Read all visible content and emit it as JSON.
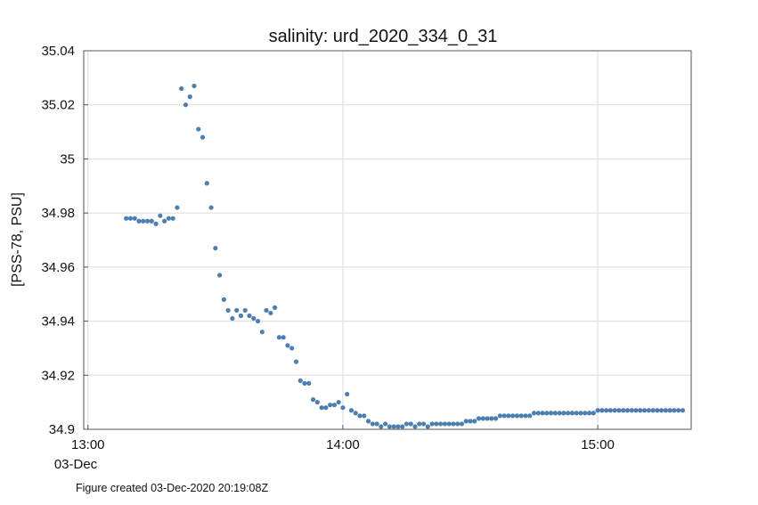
{
  "chart_data": {
    "type": "scatter",
    "title": "salinity: urd_2020_334_0_31",
    "xlabel": "",
    "ylabel": "[PSS-78, PSU]",
    "x_unit": "time of day on 03-Dec-2020 (hh:mm)",
    "xlim": [
      "12:59",
      "15:22"
    ],
    "ylim": [
      34.9,
      35.04
    ],
    "x_ticks": [
      "13:00",
      "14:00",
      "15:00"
    ],
    "x_tick_sublabel": "03-Dec",
    "y_ticks": [
      "35.04",
      "35.02",
      "35",
      "34.98",
      "34.96",
      "34.94",
      "34.92",
      "34.9"
    ],
    "grid": true,
    "marker_color": "#4a7fb0",
    "series": [
      {
        "points": [
          [
            "13:09",
            34.978
          ],
          [
            "13:10",
            34.978
          ],
          [
            "13:11",
            34.978
          ],
          [
            "13:12",
            34.977
          ],
          [
            "13:13",
            34.977
          ],
          [
            "13:14",
            34.977
          ],
          [
            "13:15",
            34.977
          ],
          [
            "13:16",
            34.976
          ],
          [
            "13:17",
            34.979
          ],
          [
            "13:18",
            34.977
          ],
          [
            "13:19",
            34.978
          ],
          [
            "13:20",
            34.978
          ],
          [
            "13:21",
            34.982
          ],
          [
            "13:22",
            35.026
          ],
          [
            "13:23",
            35.02
          ],
          [
            "13:24",
            35.023
          ],
          [
            "13:25",
            35.027
          ],
          [
            "13:26",
            35.011
          ],
          [
            "13:27",
            35.008
          ],
          [
            "13:28",
            34.991
          ],
          [
            "13:29",
            34.982
          ],
          [
            "13:30",
            34.967
          ],
          [
            "13:31",
            34.957
          ],
          [
            "13:32",
            34.948
          ],
          [
            "13:33",
            34.944
          ],
          [
            "13:34",
            34.941
          ],
          [
            "13:35",
            34.944
          ],
          [
            "13:36",
            34.942
          ],
          [
            "13:37",
            34.944
          ],
          [
            "13:38",
            34.942
          ],
          [
            "13:39",
            34.941
          ],
          [
            "13:40",
            34.94
          ],
          [
            "13:41",
            34.936
          ],
          [
            "13:42",
            34.944
          ],
          [
            "13:43",
            34.943
          ],
          [
            "13:44",
            34.945
          ],
          [
            "13:45",
            34.934
          ],
          [
            "13:46",
            34.934
          ],
          [
            "13:47",
            34.931
          ],
          [
            "13:48",
            34.93
          ],
          [
            "13:49",
            34.925
          ],
          [
            "13:50",
            34.918
          ],
          [
            "13:51",
            34.917
          ],
          [
            "13:52",
            34.917
          ],
          [
            "13:53",
            34.911
          ],
          [
            "13:54",
            34.91
          ],
          [
            "13:55",
            34.908
          ],
          [
            "13:56",
            34.908
          ],
          [
            "13:57",
            34.909
          ],
          [
            "13:58",
            34.909
          ],
          [
            "13:59",
            34.91
          ],
          [
            "14:00",
            34.908
          ],
          [
            "14:01",
            34.913
          ],
          [
            "14:02",
            34.907
          ],
          [
            "14:03",
            34.906
          ],
          [
            "14:04",
            34.905
          ],
          [
            "14:05",
            34.905
          ],
          [
            "14:06",
            34.903
          ],
          [
            "14:07",
            34.902
          ],
          [
            "14:08",
            34.902
          ],
          [
            "14:09",
            34.901
          ],
          [
            "14:10",
            34.902
          ],
          [
            "14:11",
            34.901
          ],
          [
            "14:12",
            34.901
          ],
          [
            "14:13",
            34.901
          ],
          [
            "14:14",
            34.901
          ],
          [
            "14:15",
            34.902
          ],
          [
            "14:16",
            34.902
          ],
          [
            "14:17",
            34.901
          ],
          [
            "14:18",
            34.902
          ],
          [
            "14:19",
            34.902
          ],
          [
            "14:20",
            34.901
          ],
          [
            "14:21",
            34.902
          ],
          [
            "14:22",
            34.902
          ],
          [
            "14:23",
            34.902
          ],
          [
            "14:24",
            34.902
          ],
          [
            "14:25",
            34.902
          ],
          [
            "14:26",
            34.902
          ],
          [
            "14:27",
            34.902
          ],
          [
            "14:28",
            34.902
          ],
          [
            "14:29",
            34.903
          ],
          [
            "14:30",
            34.903
          ],
          [
            "14:31",
            34.903
          ],
          [
            "14:32",
            34.904
          ],
          [
            "14:33",
            34.904
          ],
          [
            "14:34",
            34.904
          ],
          [
            "14:35",
            34.904
          ],
          [
            "14:36",
            34.904
          ],
          [
            "14:37",
            34.905
          ],
          [
            "14:38",
            34.905
          ],
          [
            "14:39",
            34.905
          ],
          [
            "14:40",
            34.905
          ],
          [
            "14:41",
            34.905
          ],
          [
            "14:42",
            34.905
          ],
          [
            "14:43",
            34.905
          ],
          [
            "14:44",
            34.905
          ],
          [
            "14:45",
            34.906
          ],
          [
            "14:46",
            34.906
          ],
          [
            "14:47",
            34.906
          ],
          [
            "14:48",
            34.906
          ],
          [
            "14:49",
            34.906
          ],
          [
            "14:50",
            34.906
          ],
          [
            "14:51",
            34.906
          ],
          [
            "14:52",
            34.906
          ],
          [
            "14:53",
            34.906
          ],
          [
            "14:54",
            34.906
          ],
          [
            "14:55",
            34.906
          ],
          [
            "14:56",
            34.906
          ],
          [
            "14:57",
            34.906
          ],
          [
            "14:58",
            34.906
          ],
          [
            "14:59",
            34.906
          ],
          [
            "15:00",
            34.907
          ],
          [
            "15:01",
            34.907
          ],
          [
            "15:02",
            34.907
          ],
          [
            "15:03",
            34.907
          ],
          [
            "15:04",
            34.907
          ],
          [
            "15:05",
            34.907
          ],
          [
            "15:06",
            34.907
          ],
          [
            "15:07",
            34.907
          ],
          [
            "15:08",
            34.907
          ],
          [
            "15:09",
            34.907
          ],
          [
            "15:10",
            34.907
          ],
          [
            "15:11",
            34.907
          ],
          [
            "15:12",
            34.907
          ],
          [
            "15:13",
            34.907
          ],
          [
            "15:14",
            34.907
          ],
          [
            "15:15",
            34.907
          ],
          [
            "15:16",
            34.907
          ],
          [
            "15:17",
            34.907
          ],
          [
            "15:18",
            34.907
          ],
          [
            "15:19",
            34.907
          ],
          [
            "15:20",
            34.907
          ]
        ]
      }
    ]
  },
  "footer": "Figure created 03-Dec-2020 20:19:08Z"
}
